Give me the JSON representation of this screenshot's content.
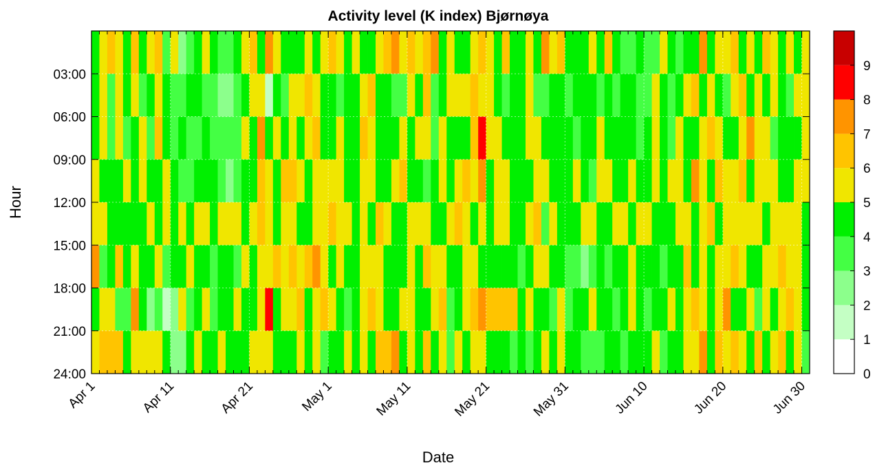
{
  "chart_data": {
    "type": "heatmap",
    "title": "Activity level (K index) Bjørnøya",
    "xlabel": "Date",
    "ylabel": "Hour",
    "xlim": [
      0,
      91
    ],
    "xticks": [
      {
        "value": 0,
        "label": "Apr 1"
      },
      {
        "value": 10,
        "label": "Apr 11"
      },
      {
        "value": 20,
        "label": "Apr 21"
      },
      {
        "value": 30,
        "label": "May 1"
      },
      {
        "value": 40,
        "label": "May 11"
      },
      {
        "value": 50,
        "label": "May 21"
      },
      {
        "value": 60,
        "label": "May 31"
      },
      {
        "value": 70,
        "label": "Jun 10"
      },
      {
        "value": 80,
        "label": "Jun 20"
      },
      {
        "value": 90,
        "label": "Jun 30"
      }
    ],
    "ylim": [
      0,
      24
    ],
    "yticks": [
      {
        "value": 3,
        "label": "03:00"
      },
      {
        "value": 6,
        "label": "06:00"
      },
      {
        "value": 9,
        "label": "09:00"
      },
      {
        "value": 12,
        "label": "12:00"
      },
      {
        "value": 15,
        "label": "15:00"
      },
      {
        "value": 18,
        "label": "18:00"
      },
      {
        "value": 21,
        "label": "21:00"
      },
      {
        "value": 24,
        "label": "24:00"
      }
    ],
    "grid": true,
    "x": [
      0,
      1,
      2,
      3,
      4,
      5,
      6,
      7,
      8,
      9,
      10,
      11,
      12,
      13,
      14,
      15,
      16,
      17,
      18,
      19,
      20,
      21,
      22,
      23,
      24,
      25,
      26,
      27,
      28,
      29,
      30,
      31,
      32,
      33,
      34,
      35,
      36,
      37,
      38,
      39,
      40,
      41,
      42,
      43,
      44,
      45,
      46,
      47,
      48,
      49,
      50,
      51,
      52,
      53,
      54,
      55,
      56,
      57,
      58,
      59,
      60,
      61,
      62,
      63,
      64,
      65,
      66,
      67,
      68,
      69,
      70,
      71,
      72,
      73,
      74,
      75,
      76,
      77,
      78,
      79,
      80,
      81,
      82,
      83,
      84,
      85,
      86,
      87,
      88,
      89,
      90
    ],
    "y": [
      0,
      3,
      6,
      9,
      12,
      15,
      18,
      21
    ],
    "z": [
      [
        4,
        5,
        6,
        5,
        4,
        6,
        4,
        5,
        6,
        3,
        5,
        2,
        3,
        4,
        5,
        4,
        3,
        3,
        4,
        5,
        6,
        4,
        7,
        5,
        4,
        4,
        4,
        5,
        4,
        5,
        6,
        5,
        4,
        5,
        4,
        4,
        5,
        6,
        7,
        5,
        6,
        5,
        6,
        7,
        4,
        5,
        4,
        4,
        5,
        6,
        5,
        4,
        6,
        4,
        4,
        5,
        4,
        7,
        5,
        6,
        4,
        4,
        4,
        5,
        4,
        6,
        4,
        3,
        3,
        4,
        3,
        3,
        5,
        4,
        3,
        4,
        4,
        7,
        4,
        5,
        5,
        6,
        4,
        5,
        4,
        6,
        5,
        4,
        5,
        4,
        5
      ],
      [
        4,
        5,
        3,
        5,
        4,
        5,
        3,
        4,
        5,
        4,
        3,
        3,
        4,
        4,
        3,
        3,
        2,
        2,
        3,
        4,
        5,
        5,
        1,
        4,
        3,
        5,
        5,
        6,
        5,
        4,
        4,
        3,
        4,
        4,
        5,
        6,
        4,
        4,
        3,
        3,
        5,
        4,
        6,
        3,
        4,
        5,
        5,
        5,
        6,
        5,
        5,
        4,
        3,
        4,
        4,
        5,
        3,
        3,
        4,
        4,
        3,
        4,
        4,
        4,
        3,
        4,
        3,
        4,
        4,
        3,
        3,
        5,
        4,
        3,
        4,
        5,
        6,
        4,
        5,
        4,
        3,
        5,
        6,
        4,
        5,
        4,
        5,
        4,
        3,
        5,
        5
      ],
      [
        4,
        5,
        3,
        5,
        3,
        4,
        5,
        3,
        6,
        4,
        3,
        4,
        3,
        3,
        4,
        3,
        3,
        3,
        3,
        5,
        4,
        7,
        4,
        5,
        4,
        5,
        4,
        5,
        6,
        4,
        4,
        5,
        4,
        4,
        6,
        5,
        4,
        4,
        4,
        5,
        4,
        5,
        5,
        3,
        5,
        4,
        4,
        4,
        6,
        8,
        5,
        5,
        4,
        4,
        4,
        5,
        5,
        4,
        4,
        4,
        4,
        3,
        4,
        4,
        5,
        4,
        4,
        4,
        4,
        3,
        4,
        5,
        4,
        3,
        5,
        4,
        4,
        5,
        6,
        5,
        4,
        4,
        5,
        7,
        5,
        5,
        3,
        4,
        4,
        4,
        5
      ],
      [
        5,
        4,
        4,
        4,
        5,
        4,
        5,
        4,
        4,
        5,
        4,
        3,
        3,
        4,
        4,
        4,
        3,
        2,
        3,
        4,
        4,
        6,
        5,
        4,
        6,
        6,
        5,
        4,
        5,
        5,
        5,
        5,
        4,
        4,
        5,
        5,
        4,
        4,
        5,
        6,
        4,
        4,
        3,
        4,
        5,
        4,
        5,
        6,
        5,
        7,
        4,
        5,
        5,
        4,
        4,
        4,
        5,
        5,
        4,
        4,
        4,
        5,
        4,
        3,
        5,
        5,
        4,
        4,
        5,
        4,
        4,
        5,
        4,
        5,
        5,
        4,
        7,
        5,
        4,
        6,
        5,
        5,
        6,
        4,
        5,
        5,
        5,
        4,
        4,
        5,
        5
      ],
      [
        5,
        5,
        4,
        4,
        4,
        4,
        4,
        5,
        4,
        5,
        4,
        5,
        4,
        5,
        5,
        4,
        5,
        5,
        5,
        4,
        5,
        6,
        5,
        4,
        5,
        5,
        4,
        4,
        5,
        5,
        6,
        5,
        5,
        4,
        5,
        4,
        6,
        5,
        4,
        4,
        5,
        5,
        5,
        4,
        4,
        5,
        6,
        5,
        4,
        5,
        4,
        5,
        5,
        4,
        4,
        5,
        6,
        3,
        5,
        4,
        4,
        4,
        5,
        5,
        4,
        4,
        5,
        5,
        4,
        5,
        5,
        4,
        4,
        4,
        5,
        5,
        4,
        5,
        6,
        4,
        5,
        5,
        5,
        5,
        5,
        4,
        5,
        5,
        5,
        5,
        4
      ],
      [
        7,
        3,
        4,
        6,
        4,
        5,
        4,
        4,
        5,
        3,
        4,
        4,
        5,
        4,
        4,
        3,
        4,
        4,
        3,
        5,
        4,
        5,
        5,
        6,
        5,
        6,
        5,
        6,
        7,
        5,
        4,
        5,
        4,
        4,
        5,
        5,
        5,
        4,
        4,
        4,
        5,
        4,
        6,
        5,
        5,
        4,
        4,
        5,
        5,
        4,
        4,
        4,
        4,
        4,
        3,
        4,
        5,
        5,
        4,
        4,
        3,
        3,
        2,
        3,
        4,
        3,
        4,
        4,
        5,
        4,
        4,
        4,
        3,
        4,
        4,
        6,
        4,
        5,
        4,
        5,
        5,
        6,
        5,
        4,
        4,
        5,
        5,
        6,
        5,
        5,
        4
      ],
      [
        4,
        5,
        5,
        3,
        3,
        7,
        4,
        2,
        3,
        1,
        2,
        5,
        3,
        4,
        5,
        3,
        4,
        4,
        5,
        4,
        4,
        5,
        8,
        4,
        5,
        5,
        6,
        4,
        5,
        6,
        5,
        4,
        3,
        4,
        5,
        6,
        5,
        4,
        4,
        5,
        5,
        4,
        4,
        5,
        6,
        3,
        4,
        5,
        6,
        7,
        6,
        6,
        6,
        6,
        4,
        5,
        4,
        4,
        3,
        5,
        3,
        4,
        4,
        5,
        4,
        4,
        3,
        4,
        5,
        4,
        3,
        4,
        4,
        5,
        4,
        5,
        6,
        5,
        4,
        5,
        7,
        4,
        4,
        5,
        3,
        5,
        4,
        5,
        6,
        5,
        4
      ],
      [
        5,
        6,
        6,
        6,
        4,
        5,
        5,
        5,
        5,
        4,
        2,
        2,
        4,
        5,
        4,
        4,
        5,
        4,
        4,
        4,
        5,
        5,
        5,
        4,
        4,
        4,
        5,
        4,
        5,
        3,
        4,
        4,
        5,
        4,
        5,
        4,
        6,
        6,
        7,
        4,
        5,
        4,
        6,
        4,
        5,
        3,
        5,
        4,
        5,
        5,
        4,
        4,
        4,
        3,
        4,
        3,
        4,
        5,
        4,
        5,
        4,
        4,
        3,
        3,
        3,
        4,
        4,
        3,
        4,
        4,
        4,
        5,
        3,
        4,
        4,
        5,
        5,
        7,
        4,
        6,
        5,
        6,
        5,
        4,
        6,
        4,
        5,
        6,
        4,
        5,
        3
      ]
    ],
    "zlim": [
      0,
      10
    ],
    "zticks": [
      0,
      1,
      2,
      3,
      4,
      5,
      6,
      7,
      8,
      9
    ],
    "colors": [
      "#ffffff",
      "#c4ffc4",
      "#8cff8c",
      "#44ff44",
      "#00f000",
      "#f0e600",
      "#ffc400",
      "#ff9400",
      "#ff0000",
      "#c80000"
    ]
  }
}
